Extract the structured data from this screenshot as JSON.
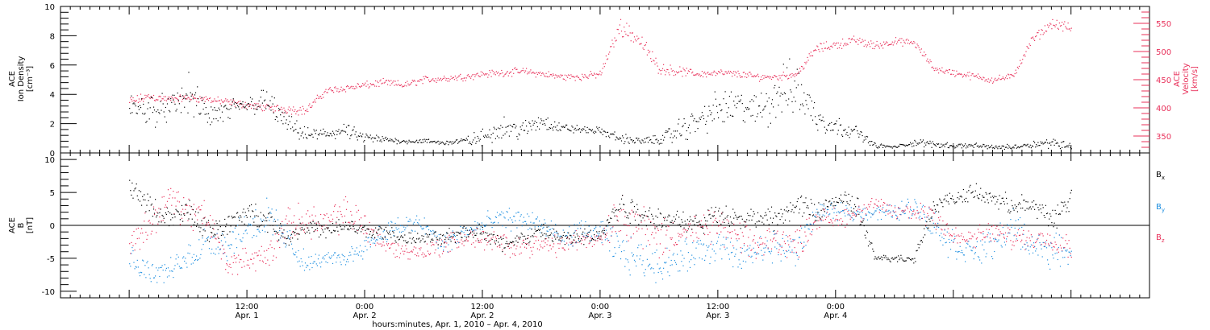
{
  "chart_data": [
    {
      "type": "scatter",
      "panel": "top",
      "ylabel_left": [
        "ACE",
        "Ion Density",
        "[cm⁻³]"
      ],
      "ylabel_right": [
        "ACE",
        "Velocity",
        "[km/s]"
      ],
      "ylim_left": [
        0,
        10
      ],
      "left_ticks": [
        0,
        2,
        4,
        6,
        8,
        10
      ],
      "ylim_right": [
        320,
        580
      ],
      "right_ticks": [
        350,
        400,
        450,
        500,
        550
      ],
      "colors": {
        "density": "#000000",
        "velocity": "#e8305a"
      },
      "series": [
        {
          "name": "Ion Density",
          "axis": "left",
          "x": [
            0,
            2,
            4,
            6,
            8,
            10,
            12,
            14,
            16,
            18,
            20,
            22,
            24,
            26,
            28,
            30,
            32,
            34,
            36,
            38,
            40,
            42,
            44,
            46,
            48,
            50,
            52,
            54,
            56,
            58,
            60,
            62,
            64,
            66,
            68,
            70,
            72,
            74,
            76,
            78,
            80,
            82,
            84,
            86,
            88,
            90,
            92,
            94,
            96
          ],
          "y": [
            3.0,
            3.0,
            3.0,
            4.0,
            2.5,
            2.8,
            3.3,
            3.5,
            2.0,
            1.2,
            1.3,
            1.5,
            1.0,
            0.9,
            0.8,
            0.8,
            0.7,
            0.8,
            1.0,
            1.8,
            1.5,
            2.2,
            1.7,
            1.6,
            1.5,
            1.0,
            0.8,
            0.9,
            1.5,
            2.2,
            3.0,
            3.2,
            2.8,
            4.0,
            4.5,
            2.5,
            1.8,
            1.5,
            0.5,
            0.4,
            0.7,
            0.6,
            0.5,
            0.5,
            0.4,
            0.4,
            0.6,
            0.7,
            0.5
          ],
          "spread": [
            1.2,
            1.5,
            1.0,
            1.6,
            1.2,
            1.0,
            0.8,
            1.2,
            0.8,
            0.6,
            0.6,
            0.6,
            0.5,
            0.3,
            0.2,
            0.2,
            0.2,
            0.3,
            0.8,
            0.8,
            0.8,
            0.8,
            0.4,
            0.3,
            0.3,
            0.4,
            0.3,
            0.4,
            1.0,
            1.2,
            1.5,
            1.5,
            1.3,
            2.5,
            2.2,
            1.5,
            0.8,
            0.5,
            0.2,
            0.1,
            0.3,
            0.3,
            0.2,
            0.2,
            0.2,
            0.2,
            0.3,
            0.4,
            0.4
          ]
        },
        {
          "name": "Velocity",
          "axis": "right",
          "x": [
            0,
            2,
            4,
            6,
            8,
            10,
            12,
            14,
            16,
            18,
            20,
            22,
            24,
            26,
            28,
            30,
            32,
            34,
            36,
            38,
            40,
            42,
            44,
            46,
            48,
            50,
            52,
            54,
            56,
            58,
            60,
            62,
            64,
            66,
            68,
            70,
            72,
            74,
            76,
            78,
            80,
            82,
            84,
            86,
            88,
            90,
            92,
            94,
            96
          ],
          "y": [
            410,
            420,
            415,
            418,
            415,
            410,
            405,
            400,
            398,
            395,
            430,
            435,
            440,
            445,
            440,
            450,
            452,
            455,
            460,
            462,
            465,
            460,
            455,
            455,
            460,
            545,
            520,
            470,
            465,
            460,
            462,
            460,
            455,
            455,
            460,
            505,
            512,
            520,
            510,
            518,
            515,
            470,
            462,
            456,
            450,
            455,
            520,
            550,
            540
          ],
          "spread": [
            12,
            10,
            8,
            8,
            8,
            8,
            8,
            8,
            10,
            10,
            8,
            8,
            8,
            8,
            8,
            8,
            8,
            8,
            8,
            8,
            8,
            8,
            8,
            8,
            8,
            18,
            20,
            12,
            10,
            8,
            8,
            8,
            8,
            8,
            8,
            10,
            10,
            10,
            10,
            8,
            8,
            8,
            8,
            8,
            8,
            8,
            10,
            10,
            12
          ]
        }
      ]
    },
    {
      "type": "scatter",
      "panel": "bottom",
      "ylabel_left": [
        "ACE",
        "B",
        "[nT]"
      ],
      "ylim_left": [
        -11,
        11
      ],
      "left_ticks": [
        -10,
        -5,
        0,
        5,
        10
      ],
      "legend": [
        "Bx",
        "By",
        "Bz"
      ],
      "legend_placement": "right",
      "colors": {
        "Bx": "#000000",
        "By": "#1e8fe0",
        "Bz": "#e8305a"
      },
      "series": [
        {
          "name": "Bx",
          "x": [
            0,
            2,
            4,
            6,
            8,
            10,
            12,
            14,
            16,
            18,
            20,
            22,
            24,
            26,
            28,
            30,
            32,
            34,
            36,
            38,
            40,
            42,
            44,
            46,
            48,
            50,
            52,
            54,
            56,
            58,
            60,
            62,
            64,
            66,
            68,
            70,
            72,
            74,
            76,
            78,
            80,
            82,
            84,
            86,
            88,
            90,
            92,
            94,
            96
          ],
          "y": [
            6,
            3,
            1,
            2,
            -1,
            0,
            2,
            1,
            -2,
            0,
            -1,
            0,
            -1,
            -1,
            -2,
            -2,
            -2,
            -1,
            -1,
            -3,
            -2,
            -1,
            -2,
            -2,
            -1,
            3,
            2,
            1,
            1,
            0,
            2,
            1,
            1,
            1,
            3,
            2,
            4,
            3,
            -5,
            -5,
            -5,
            3,
            4,
            5,
            4,
            3,
            3,
            1,
            4
          ],
          "spread": [
            1.5,
            2,
            2,
            2.5,
            2,
            2,
            2,
            2,
            1.5,
            1.5,
            1.5,
            1.5,
            1.5,
            1.5,
            1,
            1,
            1.5,
            1.5,
            1.5,
            1.5,
            1.5,
            1.5,
            1.5,
            1.5,
            2,
            3,
            2.5,
            2,
            2,
            2,
            2,
            1.5,
            2,
            2,
            2,
            2,
            1.5,
            3,
            0.6,
            0.6,
            1,
            1.5,
            1.5,
            1.5,
            1.5,
            2,
            2,
            2.5,
            2
          ]
        },
        {
          "name": "By",
          "x": [
            0,
            2,
            4,
            6,
            8,
            10,
            12,
            14,
            16,
            18,
            20,
            22,
            24,
            26,
            28,
            30,
            32,
            34,
            36,
            38,
            40,
            42,
            44,
            46,
            48,
            50,
            52,
            54,
            56,
            58,
            60,
            62,
            64,
            66,
            68,
            70,
            72,
            74,
            76,
            78,
            80,
            82,
            84,
            86,
            88,
            90,
            92,
            94,
            96
          ],
          "y": [
            -5,
            -7,
            -7,
            -5,
            -2,
            -3,
            0,
            1,
            -2,
            -6,
            -5,
            -5,
            -3,
            -1,
            0,
            0,
            -3,
            -1,
            0,
            1,
            1,
            0,
            -2,
            -1,
            -1,
            -4,
            -5,
            -6,
            -5,
            -4,
            -3,
            -5,
            -4,
            -3,
            -4,
            2,
            2,
            2,
            2,
            2,
            3,
            0,
            -3,
            -4,
            -3,
            0,
            -3,
            -4,
            -4
          ],
          "spread": [
            2.5,
            2,
            2,
            3,
            3,
            3,
            3,
            4,
            3,
            2,
            1,
            1.5,
            2,
            2,
            2,
            2,
            2,
            2,
            2,
            2,
            2,
            2,
            2,
            2,
            2,
            4,
            3,
            3,
            3,
            3,
            3,
            3,
            3,
            3,
            3,
            1.5,
            1.5,
            1.5,
            1.5,
            1.5,
            2,
            3,
            3,
            2,
            3,
            3,
            3,
            3,
            3
          ]
        },
        {
          "name": "Bz",
          "x": [
            0,
            2,
            4,
            6,
            8,
            10,
            12,
            14,
            16,
            18,
            20,
            22,
            24,
            26,
            28,
            30,
            32,
            34,
            36,
            38,
            40,
            42,
            44,
            46,
            48,
            50,
            52,
            54,
            56,
            58,
            60,
            62,
            64,
            66,
            68,
            70,
            72,
            74,
            76,
            78,
            80,
            82,
            84,
            86,
            88,
            90,
            92,
            94,
            96
          ],
          "y": [
            -3,
            0,
            4,
            2,
            1,
            -6,
            -5,
            -5,
            0,
            1,
            0,
            2,
            0,
            -3,
            -4,
            -4,
            -3,
            -2,
            -2,
            -3,
            -3,
            -3,
            -3,
            -2,
            -2,
            2,
            0,
            -2,
            -1,
            -1,
            0,
            -2,
            -3,
            -2,
            -3,
            1,
            1,
            2,
            3,
            2,
            2,
            2,
            -2,
            -2,
            -1,
            -2,
            -2,
            -2,
            -3
          ],
          "spread": [
            3,
            3,
            3,
            3,
            3,
            2,
            2,
            3,
            3,
            3,
            3,
            3,
            3,
            2,
            1.5,
            1.5,
            2,
            2,
            2,
            2,
            2,
            2,
            2,
            2,
            2,
            4,
            4,
            4,
            3,
            3,
            3,
            3,
            3,
            3,
            3,
            2,
            2,
            2,
            1.5,
            1.5,
            2,
            3,
            2,
            2,
            2,
            2,
            2,
            2,
            3
          ]
        }
      ]
    }
  ],
  "x_axis": {
    "range_hours": [
      -7,
      104
    ],
    "ticks": [
      {
        "x": 12,
        "time": "12:00",
        "day": "Apr. 1"
      },
      {
        "x": 24,
        "time": "0:00",
        "day": "Apr. 2"
      },
      {
        "x": 36,
        "time": "12:00",
        "day": "Apr. 2"
      },
      {
        "x": 48,
        "time": "0:00",
        "day": "Apr. 3"
      },
      {
        "x": 60,
        "time": "12:00",
        "day": "Apr. 3"
      },
      {
        "x": 72,
        "time": "0:00",
        "day": "Apr. 4"
      }
    ],
    "title": "hours:minutes, Apr.  1, 2010 – Apr.  4, 2010"
  },
  "legend_labels": {
    "Bx": {
      "base": "B",
      "sub": "x"
    },
    "By": {
      "base": "B",
      "sub": "y"
    },
    "Bz": {
      "base": "B",
      "sub": "z"
    }
  }
}
